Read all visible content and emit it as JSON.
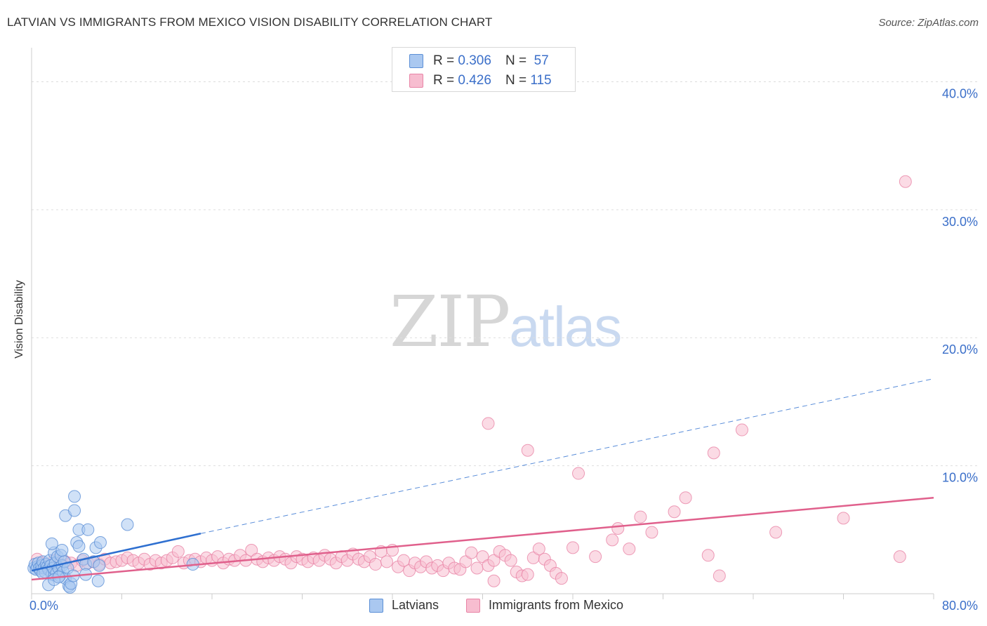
{
  "header": {
    "title": "LATVIAN VS IMMIGRANTS FROM MEXICO VISION DISABILITY CORRELATION CHART",
    "source": "Source: ZipAtlas.com"
  },
  "watermark": {
    "zip": "ZIP",
    "atlas": "atlas"
  },
  "colors": {
    "latvian_fill": "#aac8f0",
    "latvian_stroke": "#5b8fd6",
    "latvian_line": "#2e6fd0",
    "mexico_fill": "#f7bdd0",
    "mexico_stroke": "#e884a6",
    "mexico_line": "#e0608c",
    "axis_label": "#3b6fc9",
    "grid": "#dddddd"
  },
  "legend_top": {
    "rows": [
      {
        "r_label": "R =",
        "r_value": "0.306",
        "n_label": "N =",
        "n_value": "57"
      },
      {
        "r_label": "R =",
        "r_value": "0.426",
        "n_label": "N =",
        "n_value": "115"
      }
    ]
  },
  "chart_data": {
    "type": "scatter",
    "title": "LATVIAN VS IMMIGRANTS FROM MEXICO VISION DISABILITY CORRELATION CHART",
    "xlabel": "",
    "ylabel": "Vision Disability",
    "xlim": [
      0,
      80
    ],
    "ylim": [
      0,
      42
    ],
    "x_tick_labels": [
      "0.0%",
      "80.0%"
    ],
    "y_ticks": [
      10,
      20,
      30,
      40
    ],
    "y_tick_labels": [
      "10.0%",
      "20.0%",
      "30.0%",
      "40.0%"
    ],
    "grid": true,
    "legend": [
      "Latvians",
      "Immigrants from Mexico"
    ],
    "series": [
      {
        "name": "Latvians",
        "trend": {
          "x0": 0,
          "y0": 1.8,
          "x1": 15,
          "y1": 4.7,
          "dashed_to": [
            80,
            16.8
          ]
        },
        "points": [
          [
            0.2,
            2.0
          ],
          [
            0.3,
            2.3
          ],
          [
            0.4,
            1.9
          ],
          [
            0.5,
            2.1
          ],
          [
            0.6,
            2.4
          ],
          [
            0.7,
            2.0
          ],
          [
            0.8,
            1.8
          ],
          [
            0.9,
            2.2
          ],
          [
            1.0,
            2.5
          ],
          [
            1.1,
            2.0
          ],
          [
            1.2,
            1.7
          ],
          [
            1.3,
            2.3
          ],
          [
            1.4,
            2.1
          ],
          [
            1.5,
            1.9
          ],
          [
            1.6,
            2.6
          ],
          [
            1.7,
            2.2
          ],
          [
            1.8,
            1.5
          ],
          [
            1.9,
            2.0
          ],
          [
            2.0,
            3.2
          ],
          [
            2.1,
            2.4
          ],
          [
            2.2,
            1.6
          ],
          [
            2.3,
            2.9
          ],
          [
            2.4,
            2.0
          ],
          [
            2.5,
            1.4
          ],
          [
            2.6,
            3.0
          ],
          [
            2.7,
            2.2
          ],
          [
            2.8,
            1.7
          ],
          [
            2.9,
            2.5
          ],
          [
            1.8,
            3.9
          ],
          [
            2.7,
            3.4
          ],
          [
            3.0,
            1.2
          ],
          [
            3.2,
            2.0
          ],
          [
            3.3,
            0.6
          ],
          [
            3.4,
            0.5
          ],
          [
            3.5,
            0.8
          ],
          [
            3.0,
            6.1
          ],
          [
            3.8,
            7.6
          ],
          [
            3.8,
            6.5
          ],
          [
            4.2,
            5.0
          ],
          [
            4.0,
            4.0
          ],
          [
            4.2,
            3.7
          ],
          [
            4.6,
            2.7
          ],
          [
            4.8,
            2.3
          ],
          [
            5.0,
            5.0
          ],
          [
            5.5,
            2.5
          ],
          [
            5.7,
            3.6
          ],
          [
            6.1,
            4.0
          ],
          [
            6.0,
            2.2
          ],
          [
            5.9,
            1.0
          ],
          [
            4.8,
            1.5
          ],
          [
            8.5,
            5.4
          ],
          [
            3.7,
            1.4
          ],
          [
            1.5,
            0.7
          ],
          [
            2.0,
            1.1
          ],
          [
            2.4,
            1.3
          ],
          [
            14.3,
            2.3
          ],
          [
            1.0,
            1.6
          ]
        ]
      },
      {
        "name": "Immigrants from Mexico",
        "trend": {
          "x0": 0,
          "y0": 1.1,
          "x1": 80,
          "y1": 7.5
        },
        "points": [
          [
            0.5,
            2.7
          ],
          [
            1.0,
            2.4
          ],
          [
            1.5,
            2.2
          ],
          [
            2.0,
            2.6
          ],
          [
            2.5,
            2.3
          ],
          [
            3.0,
            2.5
          ],
          [
            3.5,
            2.4
          ],
          [
            4.0,
            2.2
          ],
          [
            4.5,
            2.6
          ],
          [
            5.0,
            2.4
          ],
          [
            5.5,
            2.5
          ],
          [
            6.0,
            2.3
          ],
          [
            6.5,
            2.7
          ],
          [
            7.0,
            2.4
          ],
          [
            7.5,
            2.5
          ],
          [
            8.0,
            2.6
          ],
          [
            8.5,
            2.8
          ],
          [
            9.0,
            2.6
          ],
          [
            9.5,
            2.4
          ],
          [
            10.0,
            2.7
          ],
          [
            10.5,
            2.3
          ],
          [
            11.0,
            2.6
          ],
          [
            11.5,
            2.4
          ],
          [
            12.0,
            2.6
          ],
          [
            12.5,
            2.8
          ],
          [
            13.0,
            3.3
          ],
          [
            13.5,
            2.4
          ],
          [
            14.0,
            2.6
          ],
          [
            14.5,
            2.7
          ],
          [
            15.0,
            2.5
          ],
          [
            15.5,
            2.8
          ],
          [
            16.0,
            2.6
          ],
          [
            16.5,
            2.9
          ],
          [
            17.0,
            2.4
          ],
          [
            17.5,
            2.7
          ],
          [
            18.0,
            2.6
          ],
          [
            18.5,
            3.0
          ],
          [
            19.0,
            2.6
          ],
          [
            19.5,
            3.4
          ],
          [
            20.0,
            2.7
          ],
          [
            20.5,
            2.5
          ],
          [
            21.0,
            2.8
          ],
          [
            21.5,
            2.6
          ],
          [
            22.0,
            2.9
          ],
          [
            22.5,
            2.7
          ],
          [
            23.0,
            2.4
          ],
          [
            23.5,
            2.9
          ],
          [
            24.0,
            2.7
          ],
          [
            24.5,
            2.5
          ],
          [
            25.0,
            2.8
          ],
          [
            25.5,
            2.6
          ],
          [
            26.0,
            3.0
          ],
          [
            26.5,
            2.7
          ],
          [
            27.0,
            2.4
          ],
          [
            27.5,
            2.9
          ],
          [
            28.0,
            2.6
          ],
          [
            28.5,
            3.1
          ],
          [
            29.0,
            2.7
          ],
          [
            29.5,
            2.5
          ],
          [
            30.0,
            2.9
          ],
          [
            30.5,
            2.3
          ],
          [
            31.0,
            3.3
          ],
          [
            31.5,
            2.5
          ],
          [
            32.0,
            3.4
          ],
          [
            32.5,
            2.1
          ],
          [
            33.0,
            2.6
          ],
          [
            33.5,
            1.8
          ],
          [
            34.0,
            2.4
          ],
          [
            34.5,
            2.1
          ],
          [
            35.0,
            2.5
          ],
          [
            35.5,
            2.0
          ],
          [
            36.0,
            2.2
          ],
          [
            36.5,
            1.8
          ],
          [
            37.0,
            2.4
          ],
          [
            37.5,
            2.0
          ],
          [
            38.0,
            1.9
          ],
          [
            38.5,
            2.5
          ],
          [
            39.0,
            3.2
          ],
          [
            39.5,
            2.0
          ],
          [
            40.0,
            2.9
          ],
          [
            40.5,
            2.2
          ],
          [
            41.0,
            2.6
          ],
          [
            41.5,
            3.3
          ],
          [
            42.0,
            3.0
          ],
          [
            42.5,
            2.6
          ],
          [
            43.0,
            1.7
          ],
          [
            43.5,
            1.4
          ],
          [
            44.0,
            1.5
          ],
          [
            44.5,
            2.8
          ],
          [
            45.0,
            3.5
          ],
          [
            45.5,
            2.7
          ],
          [
            46.0,
            2.2
          ],
          [
            46.5,
            1.6
          ],
          [
            47.0,
            1.2
          ],
          [
            48.0,
            3.6
          ],
          [
            48.5,
            9.4
          ],
          [
            50.0,
            2.9
          ],
          [
            51.5,
            4.2
          ],
          [
            53.0,
            3.5
          ],
          [
            54.0,
            6.0
          ],
          [
            55.0,
            4.8
          ],
          [
            57.0,
            6.4
          ],
          [
            60.0,
            3.0
          ],
          [
            61.0,
            1.4
          ],
          [
            60.5,
            11.0
          ],
          [
            63.0,
            12.8
          ],
          [
            66.0,
            4.8
          ],
          [
            72.0,
            5.9
          ],
          [
            77.0,
            2.9
          ],
          [
            41.0,
            1.0
          ],
          [
            44.0,
            11.2
          ],
          [
            40.5,
            13.3
          ],
          [
            77.5,
            32.2
          ],
          [
            52.0,
            5.1
          ],
          [
            58.0,
            7.5
          ]
        ]
      }
    ]
  },
  "legend_bottom": {
    "latvians": "Latvians",
    "mexico": "Immigrants from Mexico"
  }
}
